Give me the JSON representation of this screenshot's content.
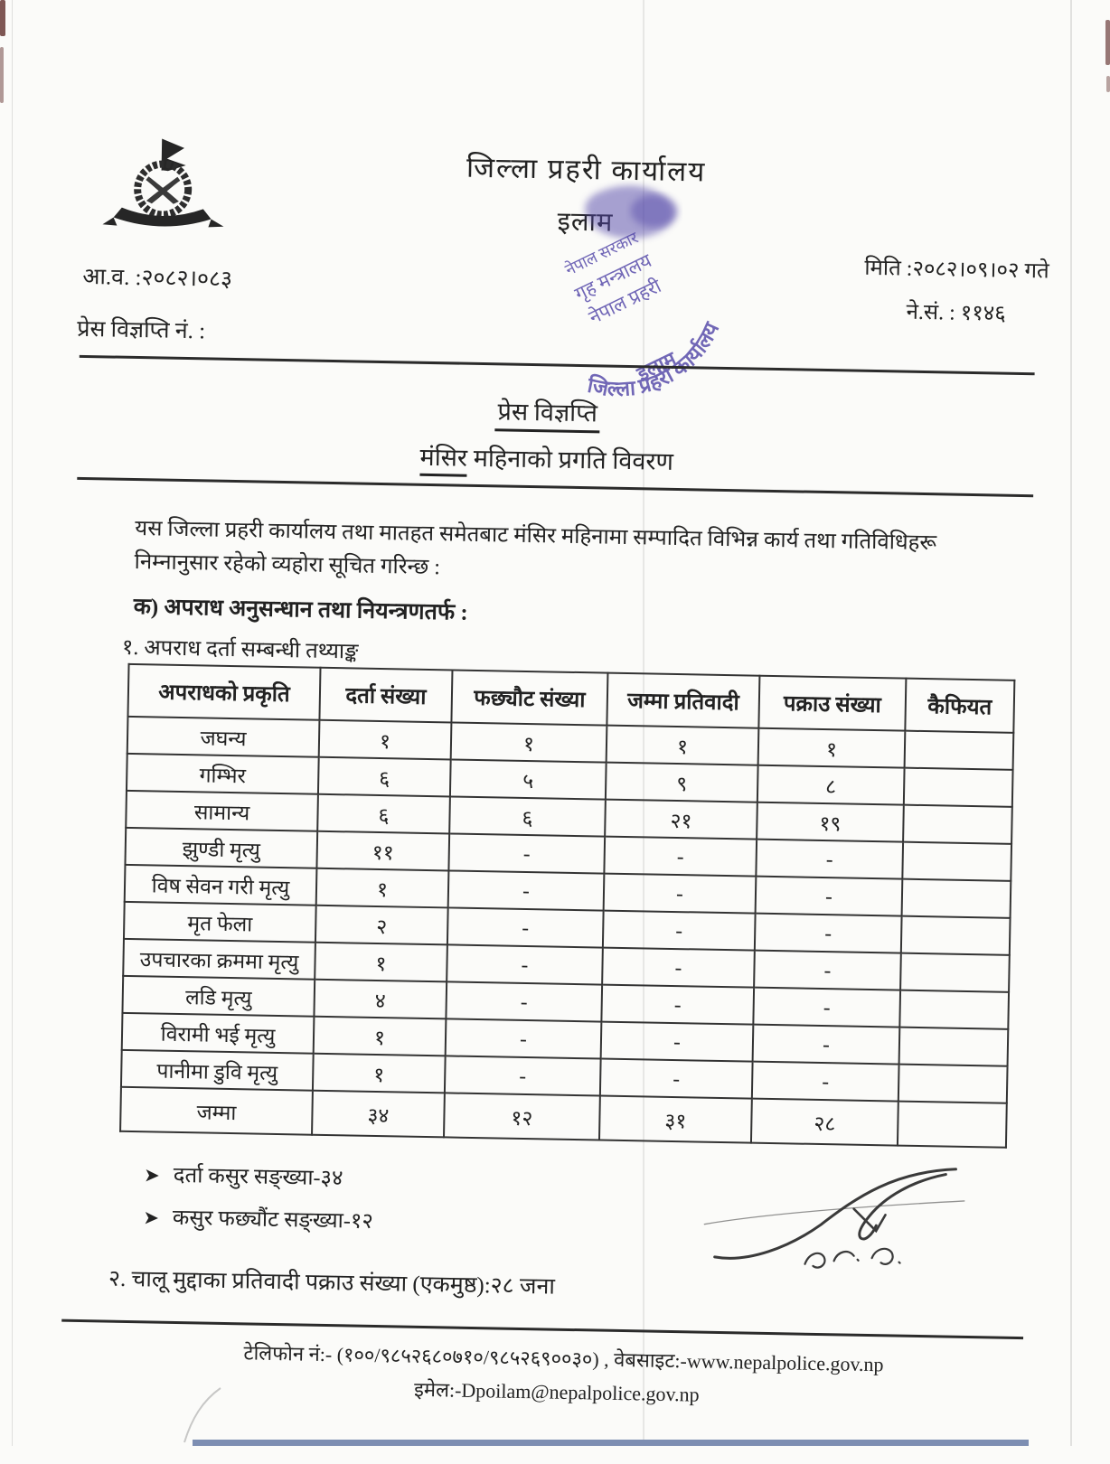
{
  "header": {
    "org_title": "जिल्ला  प्रहरी कार्यालय",
    "org_place": "इलाम",
    "fiscal_year_label": "आ.व. :२०८२।०८३",
    "press_release_no_label": "प्रेस विज्ञप्ति नं. :",
    "date_label": "मिति :२०८२।०९।०२ गते",
    "ref_no_label": "ने.सं. : ११४६"
  },
  "stamp": {
    "line1": "नेपाल सरकार",
    "line2": "गृह मन्त्रालय",
    "line3": "नेपाल प्रहरी",
    "line4": "जिल्ला प्रहरी कार्यालय",
    "line5": "इलाम"
  },
  "headings": {
    "press_release": "प्रेस विज्ञप्ति",
    "subtitle_word1": "मंसिर",
    "subtitle_rest": " महिनाको प्रगति विवरण"
  },
  "body": {
    "intro": "यस जिल्ला प्रहरी कार्यालय तथा मातहत समेतबाट मंसिर महिनामा सम्पादित विभिन्न कार्य तथा गतिविधिहरू निम्नानुसार रहेको व्यहोरा सूचित गरिन्छ :",
    "section_a": "क) अपराध अनुसन्धान तथा नियन्त्रणतर्फ :",
    "item_1": "१. अपराध दर्ता सम्बन्धी तथ्याङ्क",
    "item_2": "२. चालू मुद्दाका प्रतिवादी पक्राउ संख्या (एकमुष्ठ):२८ जना"
  },
  "table": {
    "columns": [
      "अपराधको प्रकृति",
      "दर्ता संख्या",
      "फछ्यौट संख्या",
      "जम्मा प्रतिवादी",
      "पक्राउ संख्या",
      "कैफियत"
    ],
    "rows": [
      [
        "जघन्य",
        "१",
        "१",
        "१",
        "१",
        ""
      ],
      [
        "गम्भिर",
        "६",
        "५",
        "९",
        "८",
        ""
      ],
      [
        "सामान्य",
        "६",
        "६",
        "२१",
        "१९",
        ""
      ],
      [
        "झुण्डी मृत्यु",
        "११",
        "-",
        "-",
        "-",
        ""
      ],
      [
        "विष सेवन गरी मृत्यु",
        "१",
        "-",
        "-",
        "-",
        ""
      ],
      [
        "मृत फेला",
        "२",
        "-",
        "-",
        "-",
        ""
      ],
      [
        "उपचारका क्रममा मृत्यु",
        "१",
        "-",
        "-",
        "-",
        ""
      ],
      [
        "लडि मृत्यु",
        "४",
        "-",
        "-",
        "-",
        ""
      ],
      [
        "विरामी भई मृत्यु",
        "१",
        "-",
        "-",
        "-",
        ""
      ],
      [
        "पानीमा डुवि मृत्यु",
        "१",
        "-",
        "-",
        "-",
        ""
      ],
      [
        "जम्मा",
        "३४",
        "१२",
        "३१",
        "२८",
        ""
      ]
    ]
  },
  "bullets": [
    "दर्ता कसुर सङ्ख्या-३४",
    "कसुर फछ्यौंट सङ्ख्या-१२"
  ],
  "footer": {
    "line1": "टेलिफोन नं:- (१००/९८५२६८०७१०/९८५२६९००३०) , वेबसाइट:-www.nepalpolice.gov.np",
    "line2": "इमेल:-Dpoilam@nepalpolice.gov.np"
  },
  "colors": {
    "ink": "#222222",
    "stamp_ink": "#5246a8",
    "scan_strip": "#7d8eb2",
    "edge_mark": "#55201c"
  }
}
